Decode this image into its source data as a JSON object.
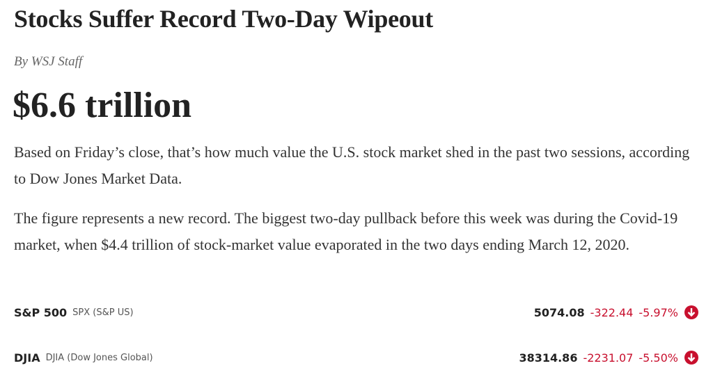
{
  "headline": "Stocks Suffer Record Two-Day Wipeout",
  "byline": "By WSJ Staff",
  "big_number": "$6.6 trillion",
  "paragraphs": [
    "Based on Friday’s close, that’s how much value the U.S. stock market shed in the past two sessions, according to Dow Jones Market Data.",
    "The figure represents a new record. The biggest two-day pullback before this week was during the Covid-19 market, when $4.4 trillion of stock-market value evaporated in the two days ending March 12, 2020."
  ],
  "tickers": [
    {
      "name": "S&P 500",
      "symbol": "SPX (S&P US)",
      "price": "5074.08",
      "change": "-322.44",
      "change_pct": "-5.97%"
    },
    {
      "name": "DJIA",
      "symbol": "DJIA (Dow Jones Global)",
      "price": "38314.86",
      "change": "-2231.07",
      "change_pct": "-5.50%"
    }
  ]
}
